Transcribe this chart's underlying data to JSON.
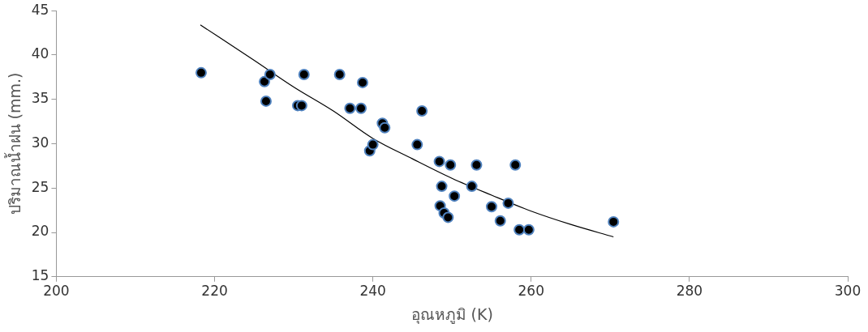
{
  "chart_data": {
    "type": "scatter",
    "xlabel": "อุณหภูมิ (K)",
    "ylabel": "ปริมาณน้ำฝน (mm.)",
    "xlim": [
      200,
      300
    ],
    "xticks": [
      200,
      220,
      240,
      260,
      280,
      300
    ],
    "ylim": [
      15,
      45
    ],
    "yticks": [
      15,
      20,
      25,
      30,
      35,
      40,
      45
    ],
    "grid": false,
    "legend": false,
    "marker": "circle",
    "series": [
      {
        "color": "#000000",
        "x": [
          218.3,
          226.3,
          226.5,
          227,
          230.5,
          231,
          231.3,
          235.8,
          237.1,
          238.5,
          238.7,
          239.6,
          240,
          241.2,
          241.5,
          245.6,
          246.2,
          248.4,
          248.5,
          248.7,
          249,
          249.5,
          249.8,
          250.3,
          252.5,
          253.1,
          255,
          256.1,
          257.1,
          258,
          258.5,
          259.7,
          270.4
        ],
        "values": [
          38,
          37,
          34.8,
          37.8,
          34.3,
          34.3,
          37.8,
          37.8,
          34,
          34,
          36.9,
          29.2,
          29.9,
          32.3,
          31.8,
          29.9,
          33.7,
          28,
          23,
          25.2,
          22.2,
          21.7,
          27.6,
          24.1,
          25.2,
          27.6,
          22.9,
          21.3,
          23.3,
          27.6,
          20.3,
          20.3,
          21.2
        ]
      },
      {
        "type": "line",
        "color": "#000000",
        "marker": "none",
        "x": [
          218.2,
          225,
          230,
          235,
          240,
          245,
          250,
          255,
          260,
          265,
          270.4
        ],
        "values": [
          43.4,
          39.4,
          36.4,
          33.7,
          30.6,
          28.3,
          26.1,
          24.2,
          22.4,
          20.9,
          19.5
        ]
      }
    ]
  }
}
